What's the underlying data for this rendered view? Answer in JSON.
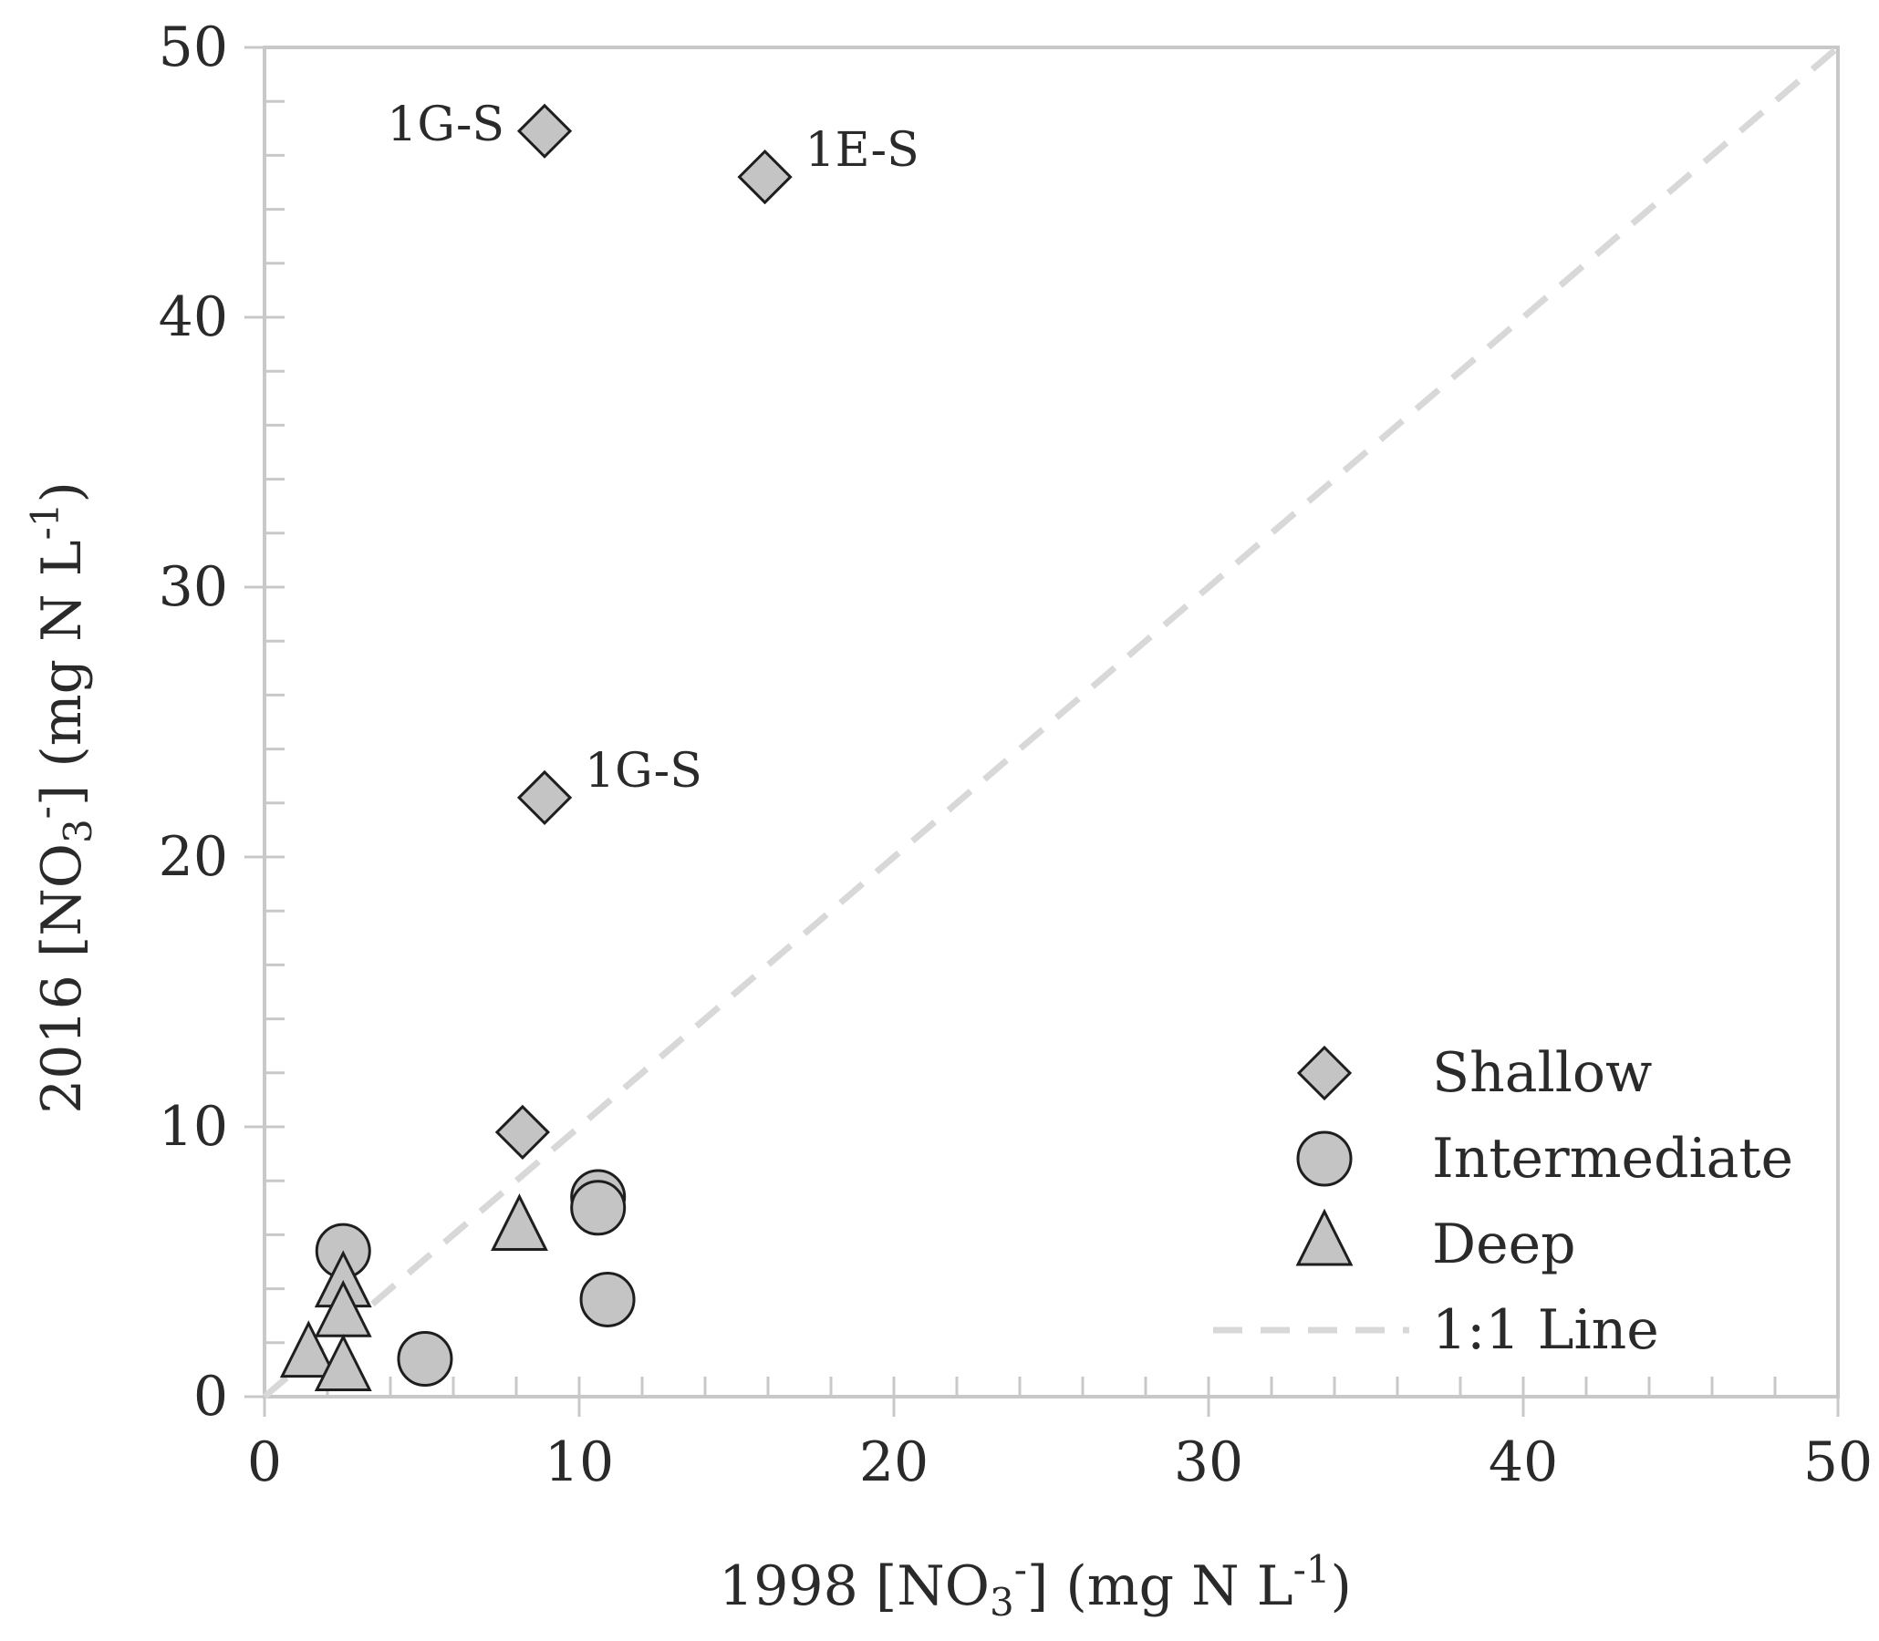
{
  "chart_data": {
    "type": "scatter",
    "xlim": [
      0,
      50
    ],
    "ylim": [
      0,
      50
    ],
    "x_ticks": [
      "0",
      "10",
      "20",
      "30",
      "40",
      "50"
    ],
    "y_ticks": [
      "0",
      "10",
      "20",
      "30",
      "40",
      "50"
    ],
    "x_tick_values": [
      0,
      10,
      20,
      30,
      40,
      50
    ],
    "y_tick_values": [
      0,
      10,
      20,
      30,
      40,
      50
    ],
    "xlabel": {
      "pre": "1998 [NO",
      "sub": "3",
      "sup": "-",
      "post": "] (mg N L",
      "unit_sup": "-1",
      "close": ")"
    },
    "ylabel": {
      "pre": "2016 [NO",
      "sub": "3",
      "sup": "-",
      "post": "] (mg N L",
      "unit_sup": "-1",
      "close": ")"
    },
    "grid": false,
    "legend_position": "bottom-right",
    "series": [
      {
        "name": "Shallow",
        "marker": "diamond",
        "color": "#c4c4c4",
        "points": [
          {
            "x": 8.9,
            "y": 46.9,
            "label": "1G-S"
          },
          {
            "x": 15.9,
            "y": 45.2,
            "label": "1E-S"
          },
          {
            "x": 8.9,
            "y": 22.2,
            "label": "1G-S"
          },
          {
            "x": 8.2,
            "y": 9.8,
            "label": ""
          }
        ]
      },
      {
        "name": "Intermediate",
        "marker": "circle",
        "color": "#c4c4c4",
        "points": [
          {
            "x": 2.5,
            "y": 5.4
          },
          {
            "x": 5.1,
            "y": 1.4
          },
          {
            "x": 10.6,
            "y": 7.4
          },
          {
            "x": 10.6,
            "y": 7.0
          },
          {
            "x": 10.9,
            "y": 3.6
          }
        ]
      },
      {
        "name": "Deep",
        "marker": "triangle",
        "color": "#c4c4c4",
        "points": [
          {
            "x": 1.4,
            "y": 1.5
          },
          {
            "x": 2.5,
            "y": 4.1
          },
          {
            "x": 2.5,
            "y": 3.0
          },
          {
            "x": 2.5,
            "y": 1.0
          },
          {
            "x": 8.1,
            "y": 6.2
          }
        ]
      }
    ],
    "reference_line": {
      "name": "1:1 Line",
      "from": [
        0,
        0
      ],
      "to": [
        50,
        50
      ],
      "color": "#d8d8d8"
    },
    "colors": {
      "axis": "#c8c8c8",
      "marker_stroke": "#1e1e1e"
    }
  }
}
